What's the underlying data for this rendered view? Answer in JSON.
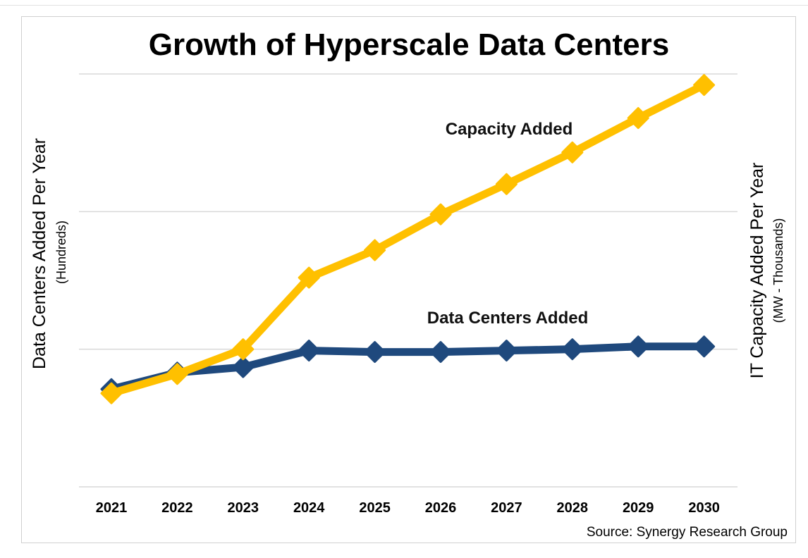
{
  "chart_data": {
    "type": "line",
    "title": "Growth of Hyperscale Data Centers",
    "x": [
      "2021",
      "2022",
      "2023",
      "2024",
      "2025",
      "2026",
      "2027",
      "2028",
      "2029",
      "2030"
    ],
    "ylim": [
      0,
      3
    ],
    "grid": true,
    "y_axis_left": {
      "title": "Data Centers Added Per Year",
      "subtitle": "(Hundreds)"
    },
    "y_axis_right": {
      "title": "IT Capacity Added Per Year",
      "subtitle": "(MW - Thousands)"
    },
    "series": [
      {
        "name": "Data Centers Added",
        "color": "#1F497D",
        "marker": "diamond",
        "values": [
          0.71,
          0.83,
          0.87,
          0.99,
          0.98,
          0.98,
          0.99,
          1.0,
          1.02,
          1.02
        ]
      },
      {
        "name": "Capacity Added",
        "color": "#FFC000",
        "marker": "diamond",
        "values": [
          0.68,
          0.82,
          1.0,
          1.52,
          1.72,
          1.98,
          2.2,
          2.43,
          2.68,
          2.92
        ]
      }
    ],
    "source": "Source: Synergy Research Group"
  }
}
